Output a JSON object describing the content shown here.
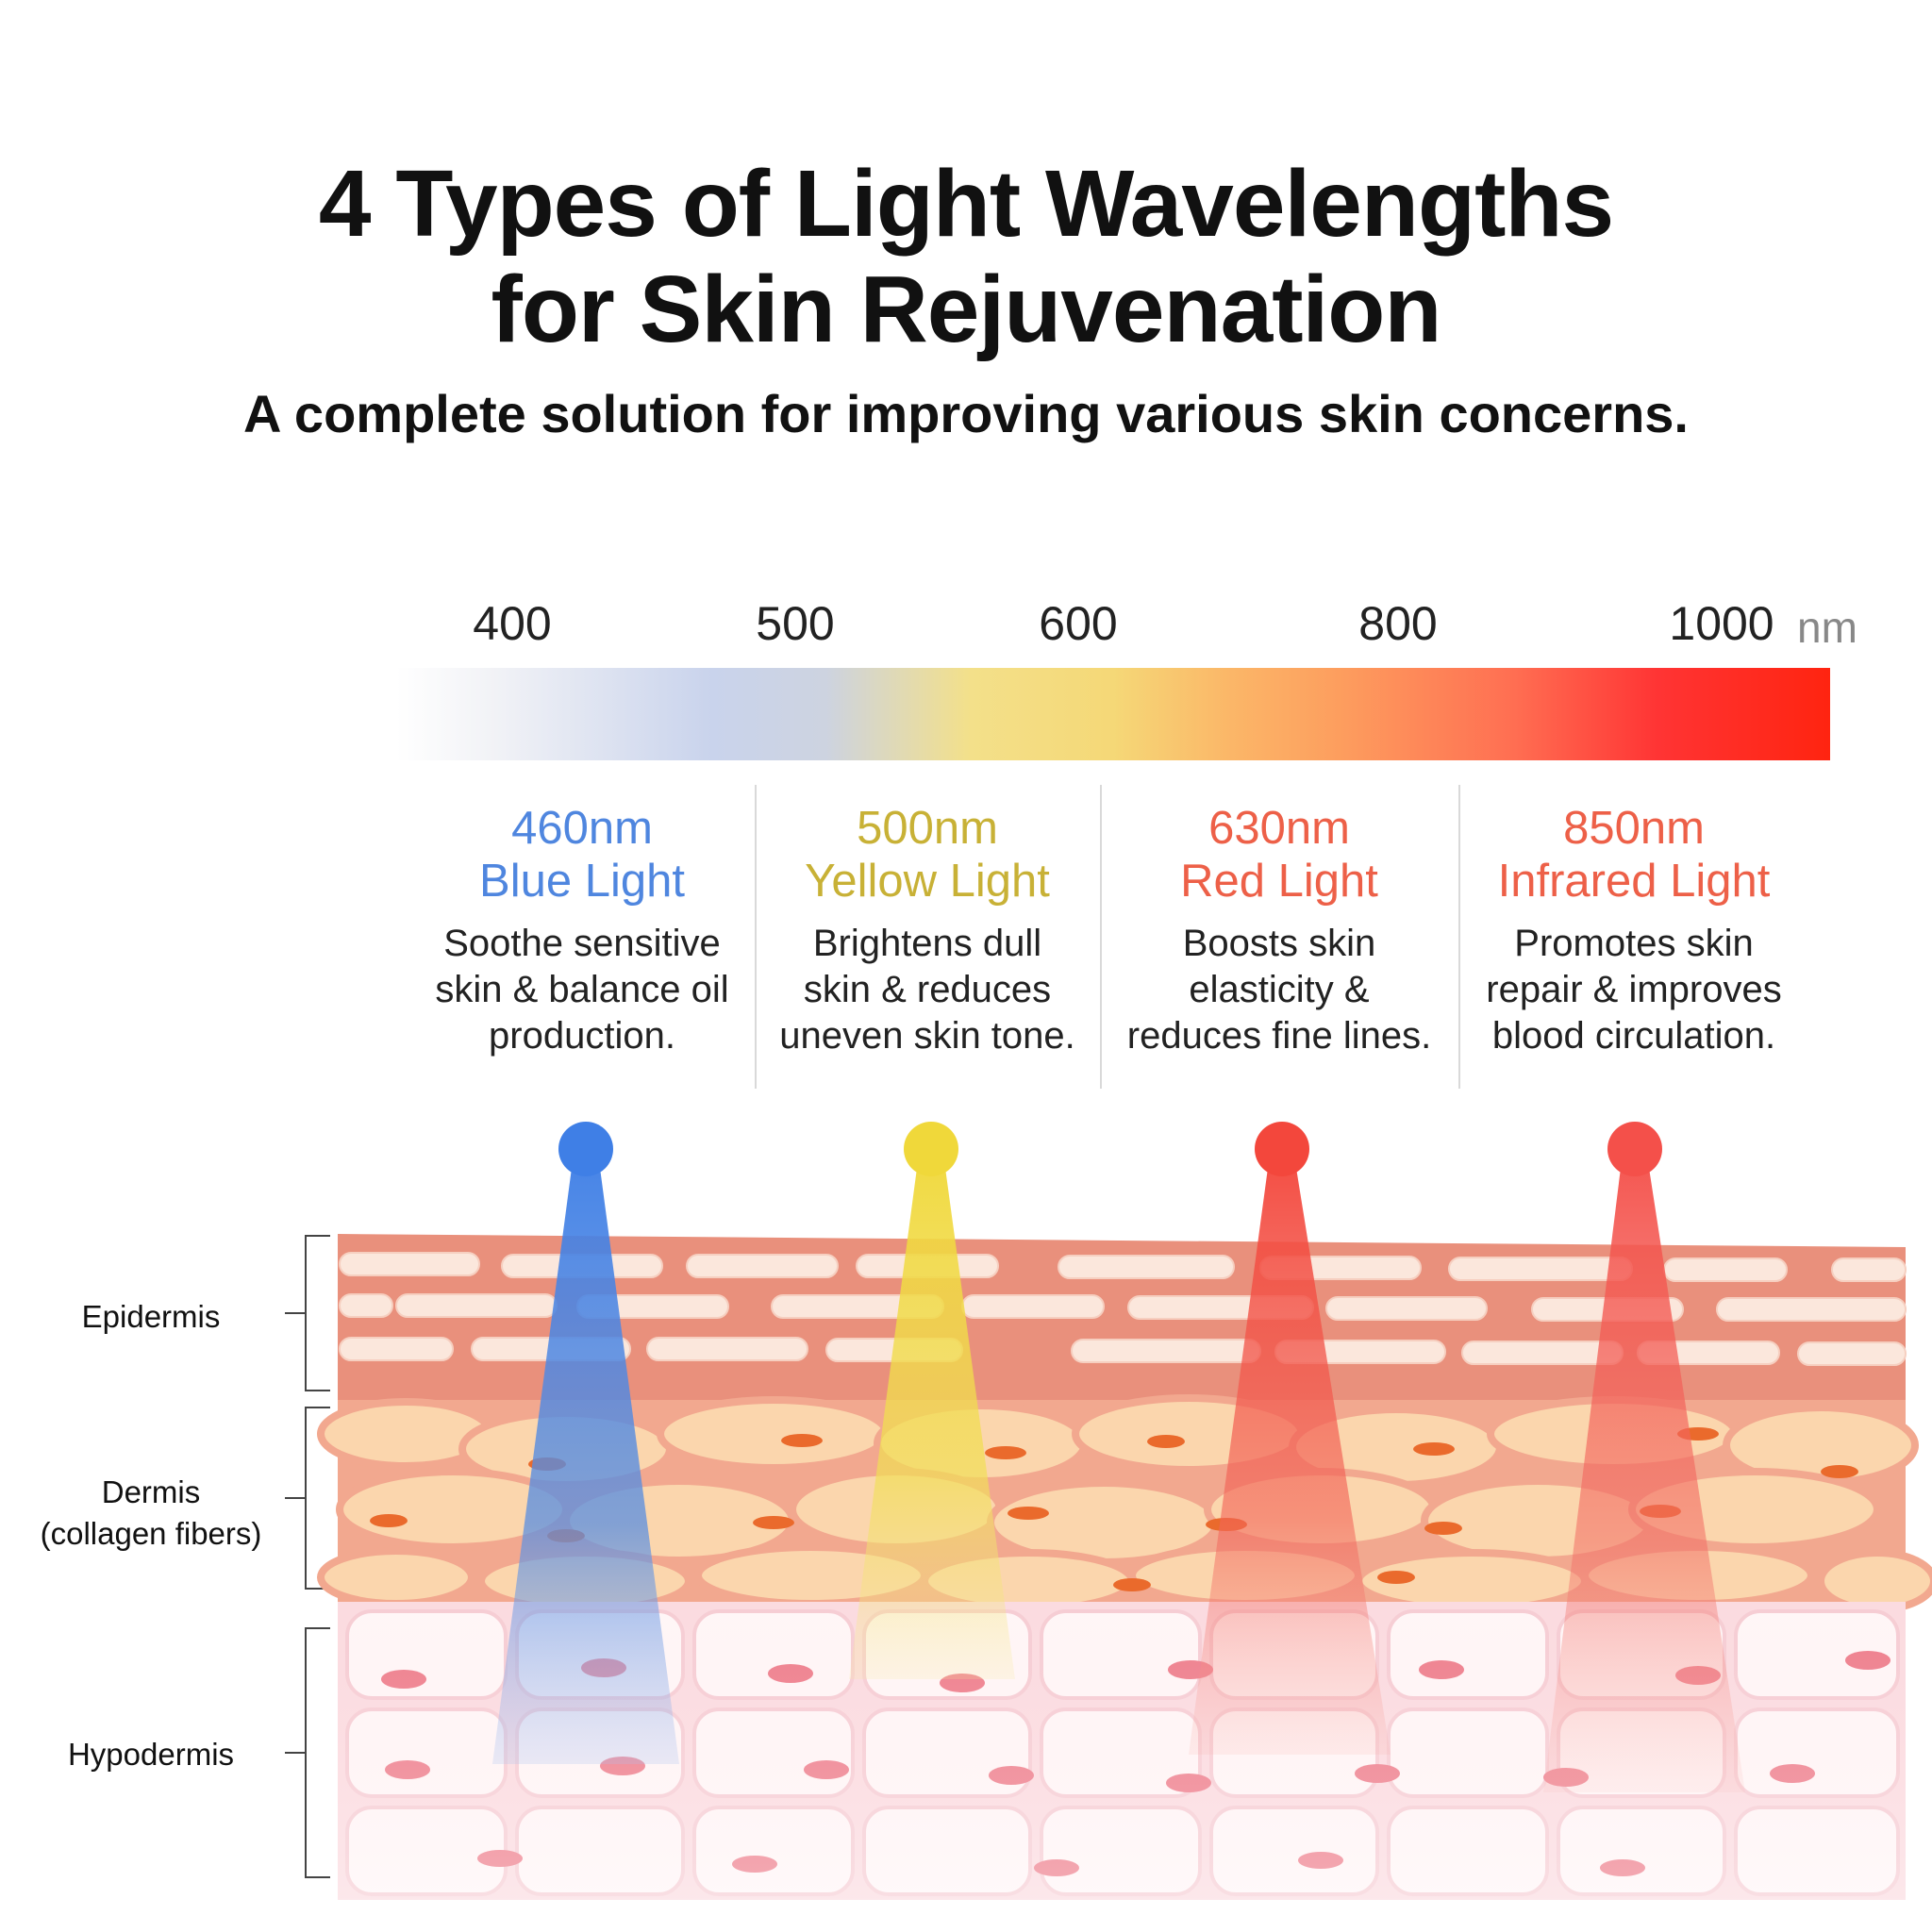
{
  "title": {
    "line1": "4 Types of Light Wavelengths",
    "line2": "for Skin Rejuvenation"
  },
  "subtitle": "A complete solution for improving various skin concerns.",
  "scale": {
    "ticks": [
      "400",
      "500",
      "600",
      "800",
      "1000"
    ],
    "unit": "nm"
  },
  "lights": [
    {
      "wavelength": "460nm",
      "name": "Blue Light",
      "color": "#4f86df",
      "desc": [
        "Soothe sensitive",
        "skin & balance oil",
        "production."
      ]
    },
    {
      "wavelength": "500nm",
      "name": "Yellow Light",
      "color": "#c8b136",
      "desc": [
        "Brightens dull",
        "skin & reduces",
        "uneven skin tone."
      ]
    },
    {
      "wavelength": "630nm",
      "name": "Red Light",
      "color": "#ed6048",
      "desc": [
        "Boosts skin",
        "elasticity &",
        "reduces fine lines."
      ]
    },
    {
      "wavelength": "850nm",
      "name": "Infrared Light",
      "color": "#ed6048",
      "desc": [
        "Promotes skin",
        "repair & improves",
        "blood circulation."
      ]
    }
  ],
  "layers": {
    "epidermis": "Epidermis",
    "dermis_line1": "Dermis",
    "dermis_line2": "(collagen fibers)",
    "hypodermis": "Hypodermis"
  },
  "colors": {
    "blue_beam": "#3f7fe6",
    "yellow_beam": "#f0d83a",
    "red_beam": "#f3473c",
    "infrared_beam": "#f4504a"
  }
}
